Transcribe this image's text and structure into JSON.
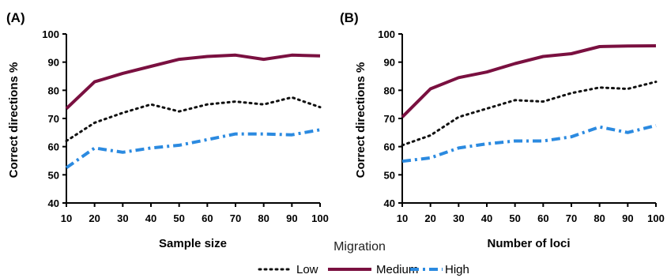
{
  "colors": {
    "Low": "#111111",
    "Medium": "#7a1040",
    "High": "#2b8ae0"
  },
  "legend": {
    "title": "Migration",
    "items": [
      {
        "label": "Low",
        "style": "dotted"
      },
      {
        "label": "Medium",
        "style": "solid"
      },
      {
        "label": "High",
        "style": "dashdot"
      }
    ]
  },
  "chart_data": [
    {
      "type": "line",
      "panel_label": "(A)",
      "xlabel": "Sample size",
      "ylabel": "Correct directions %",
      "x": [
        10,
        20,
        30,
        40,
        50,
        60,
        70,
        80,
        90,
        100
      ],
      "xlim": [
        10,
        100
      ],
      "ylim": [
        40,
        100
      ],
      "xticks": [
        "10",
        "20",
        "30",
        "40",
        "50",
        "60",
        "70",
        "80",
        "90",
        "100"
      ],
      "yticks": [
        "40",
        "50",
        "60",
        "70",
        "80",
        "90",
        "100"
      ],
      "grid": false,
      "series": [
        {
          "name": "Low",
          "values": [
            62,
            68.5,
            72,
            75,
            72.5,
            75,
            76,
            75,
            77.5,
            74
          ]
        },
        {
          "name": "Medium",
          "values": [
            73.5,
            83,
            86,
            88.5,
            91,
            92,
            92.5,
            91,
            92.5,
            92.2
          ]
        },
        {
          "name": "High",
          "values": [
            52.5,
            59.5,
            58,
            59.5,
            60.5,
            62.5,
            64.5,
            64.5,
            64.2,
            66
          ]
        }
      ]
    },
    {
      "type": "line",
      "panel_label": "(B)",
      "xlabel": "Number of loci",
      "ylabel": "Correct directions %",
      "x": [
        10,
        20,
        30,
        40,
        50,
        60,
        70,
        80,
        90,
        100
      ],
      "xlim": [
        10,
        100
      ],
      "ylim": [
        40,
        100
      ],
      "xticks": [
        "10",
        "20",
        "30",
        "40",
        "50",
        "60",
        "70",
        "80",
        "90",
        "100"
      ],
      "yticks": [
        "40",
        "50",
        "60",
        "70",
        "80",
        "90",
        "100"
      ],
      "grid": false,
      "series": [
        {
          "name": "Low",
          "values": [
            60.5,
            64,
            70.5,
            73.5,
            76.5,
            76,
            79,
            81,
            80.5,
            83
          ]
        },
        {
          "name": "Medium",
          "values": [
            70.5,
            80.5,
            84.5,
            86.5,
            89.5,
            92,
            93,
            95.5,
            95.7,
            95.8
          ]
        },
        {
          "name": "High",
          "values": [
            54.8,
            56,
            59.5,
            61,
            62,
            62,
            63.5,
            67,
            65,
            67.5
          ]
        }
      ]
    }
  ]
}
